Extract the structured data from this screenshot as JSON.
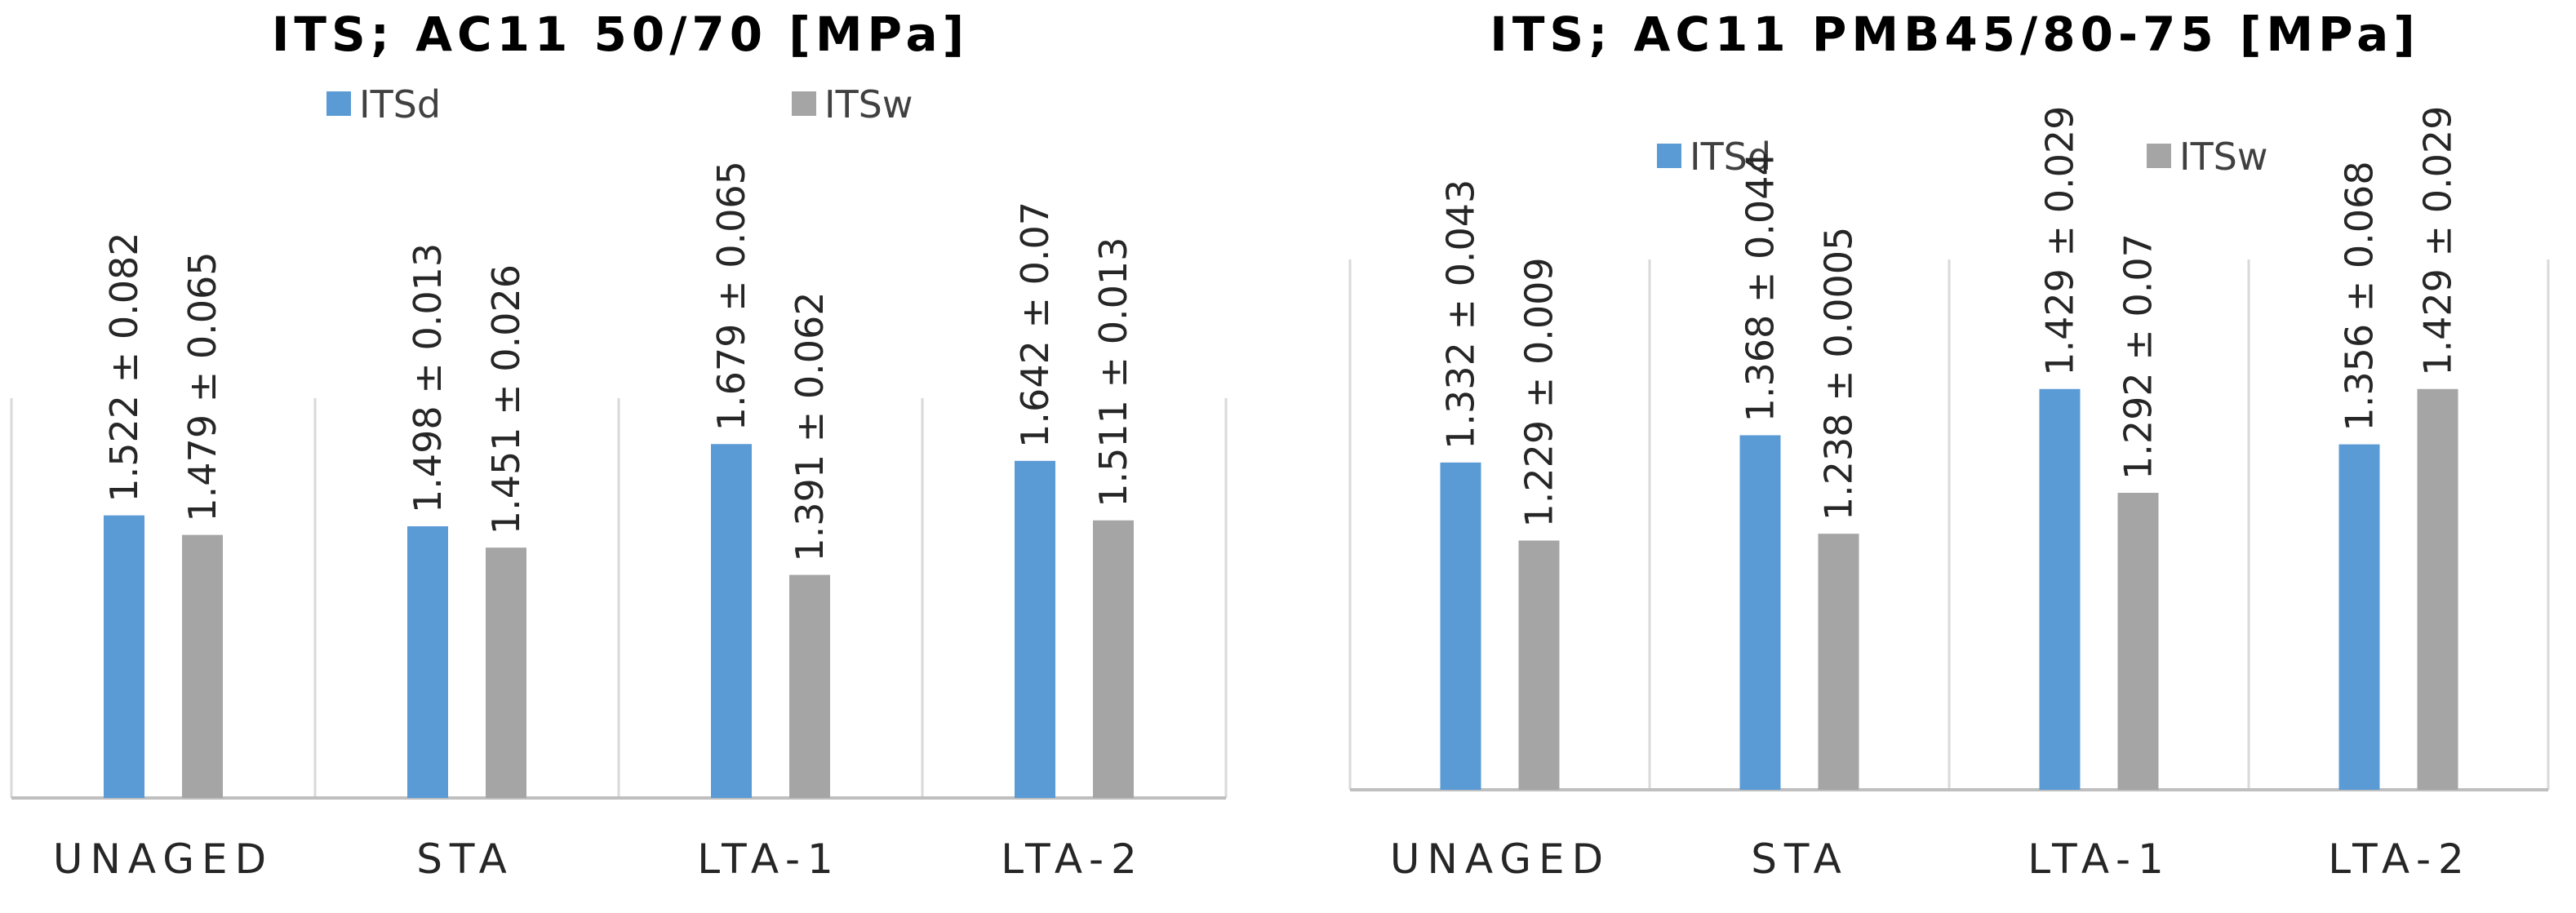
{
  "chart_data": [
    {
      "type": "bar",
      "title": "ITS; AC11 50/70 [MPa]",
      "categories": [
        "UNAGED",
        "STA",
        "LTA-1",
        "LTA-2"
      ],
      "series": [
        {
          "name": "ITSd",
          "color": "#5b9bd5",
          "values": [
            1.522,
            1.498,
            1.679,
            1.642
          ],
          "labels": [
            "1.522 ± 0.082",
            "1.498 ± 0.013",
            "1.679 ± 0.065",
            "1.642 ± 0.07"
          ]
        },
        {
          "name": "ITSw",
          "color": "#a5a5a5",
          "values": [
            1.479,
            1.451,
            1.391,
            1.511
          ],
          "labels": [
            "1.479 ± 0.065",
            "1.451 ± 0.026",
            "1.391 ± 0.062",
            "1.511 ± 0.013"
          ]
        }
      ],
      "xlabel": "",
      "ylabel": "",
      "ylim": [
        0.9,
        1.78
      ],
      "grid": true,
      "legend": "top-center"
    },
    {
      "type": "bar",
      "title": "ITS; AC11 PMB45/80-75 [MPa]",
      "categories": [
        "UNAGED",
        "STA",
        "LTA-1",
        "LTA-2"
      ],
      "series": [
        {
          "name": "ITSd",
          "color": "#5b9bd5",
          "values": [
            1.332,
            1.368,
            1.429,
            1.356
          ],
          "labels": [
            "1.332 ± 0.043",
            "1.368 ± 0.044",
            "1.429 ± 0.029",
            "1.356 ± 0.068"
          ]
        },
        {
          "name": "ITSw",
          "color": "#a5a5a5",
          "values": [
            1.229,
            1.238,
            1.292,
            1.429
          ],
          "labels": [
            "1.229 ± 0.009",
            "1.238 ± 0.0005",
            "1.292 ± 0.07",
            "1.429 ± 0.029"
          ]
        }
      ],
      "xlabel": "",
      "ylabel": "",
      "ylim": [
        0.9,
        1.6
      ],
      "grid": true,
      "legend": "top-center"
    }
  ]
}
